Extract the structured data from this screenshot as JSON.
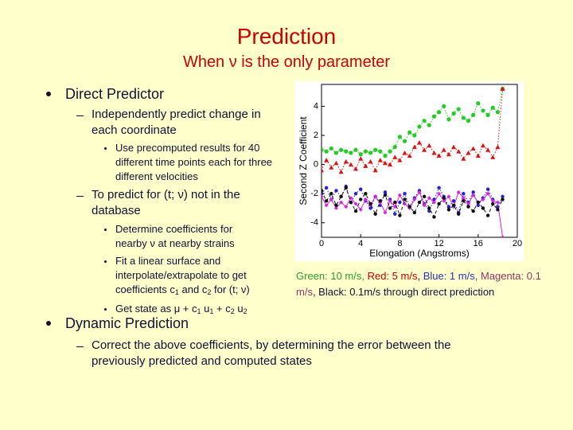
{
  "title": "Prediction",
  "subtitle": "When ν is the only parameter",
  "outline": [
    {
      "text": "Direct Predictor",
      "items": [
        {
          "text": "Independently predict change in each coordinate",
          "items": [
            {
              "parts": [
                "Use precomputed results for 40 different time points each for three different velocities"
              ]
            }
          ]
        },
        {
          "text": "To predict for (t; ν) not in the database",
          "items": [
            {
              "parts": [
                "Determine coefficients for nearby ν at nearby strains"
              ]
            },
            {
              "parts": [
                "Fit a linear surface and interpolate/extrapolate to get coefficients c",
                "1",
                " and c",
                "2",
                " for (t; ν)"
              ]
            },
            {
              "parts": [
                "Get state as μ + c",
                "1",
                " u",
                "1",
                " + c",
                "2",
                " u",
                "2"
              ]
            }
          ]
        }
      ]
    },
    {
      "text": "Dynamic Prediction",
      "items": [
        {
          "text": "Correct the above coefficients, by determining the error between the previously predicted and computed states"
        }
      ]
    }
  ],
  "caption": [
    {
      "text": "Green: 10 m/s, ",
      "color": "#2e9e2e"
    },
    {
      "text": "Red: 5 m/s",
      "color": "#cc0000"
    },
    {
      "text": ", ",
      "color": "#111133"
    },
    {
      "text": "Blue: 1 m/s, ",
      "color": "#2233bb"
    },
    {
      "text": "Magenta: 0.1 m/s",
      "color": "#993366"
    },
    {
      "text": ", Black: 0.1m/s through direct prediction",
      "color": "#111133"
    }
  ],
  "chart_data": {
    "type": "line",
    "xlabel": "Elongation (Angstroms)",
    "ylabel": "Second Z Coefficient",
    "xlim": [
      0,
      20
    ],
    "ylim": [
      -5,
      5.5
    ],
    "xticks": [
      0,
      4,
      8,
      12,
      16,
      20
    ],
    "yticks": [
      -4,
      -2,
      0,
      2,
      4
    ],
    "x": [
      0,
      0.5,
      1,
      1.5,
      2,
      2.5,
      3,
      3.5,
      4,
      4.5,
      5,
      5.5,
      6,
      6.5,
      7,
      7.5,
      8,
      8.5,
      9,
      9.5,
      10,
      10.5,
      11,
      11.5,
      12,
      12.5,
      13,
      13.5,
      14,
      14.5,
      15,
      15.5,
      16,
      16.5,
      17,
      17.5,
      18,
      18.5
    ],
    "series": [
      {
        "color": "#22cc22",
        "marker": "circle",
        "line": "dotted",
        "values": [
          1.0,
          0.9,
          1.1,
          0.8,
          1.0,
          0.9,
          0.8,
          1.0,
          0.7,
          0.9,
          0.8,
          1.0,
          0.9,
          0.6,
          0.9,
          1.2,
          1.9,
          1.6,
          2.2,
          2.0,
          2.6,
          3.0,
          2.7,
          3.3,
          3.6,
          4.0,
          3.1,
          3.5,
          3.8,
          3.2,
          3.0,
          3.4,
          4.2,
          3.7,
          3.4,
          3.9,
          3.6,
          5.2
        ]
      },
      {
        "color": "#dd1111",
        "marker": "triangle",
        "line": "dotted",
        "values": [
          -0.4,
          0.3,
          -0.2,
          0.1,
          -0.5,
          0.2,
          0.0,
          -0.3,
          0.4,
          -0.1,
          0.2,
          -0.4,
          0.3,
          0.1,
          0.0,
          0.5,
          0.3,
          0.8,
          0.6,
          1.2,
          1.5,
          1.0,
          1.3,
          0.8,
          0.6,
          1.0,
          0.7,
          1.2,
          0.9,
          0.4,
          0.8,
          1.1,
          0.6,
          1.3,
          1.0,
          0.5,
          1.2,
          5.2
        ]
      },
      {
        "color": "#2222dd",
        "marker": "dot",
        "line": "dotted",
        "values": [
          -2.0,
          -1.6,
          -2.4,
          -1.8,
          -2.2,
          -1.5,
          -2.6,
          -2.0,
          -1.7,
          -2.5,
          -3.0,
          -2.2,
          -2.8,
          -1.9,
          -2.4,
          -3.4,
          -2.6,
          -2.0,
          -2.9,
          -2.3,
          -1.8,
          -2.7,
          -3.2,
          -2.4,
          -1.6,
          -2.2,
          -2.9,
          -2.5,
          -3.3,
          -2.0,
          -2.6,
          -1.9,
          -2.8,
          -2.3,
          -1.7,
          -2.4,
          -2.9,
          -2.2
        ]
      },
      {
        "color": "#dd22dd",
        "marker": "diamond",
        "line": "solid",
        "values": [
          -2.2,
          -2.8,
          -2.4,
          -3.0,
          -2.6,
          -2.9,
          -2.3,
          -2.7,
          -3.1,
          -2.4,
          -2.8,
          -2.2,
          -2.6,
          -3.3,
          -2.5,
          -2.9,
          -2.1,
          -2.7,
          -3.0,
          -2.4,
          -1.9,
          -2.8,
          -2.3,
          -2.6,
          -2.0,
          -2.5,
          -2.2,
          -2.9,
          -1.9,
          -2.3,
          -2.7,
          -2.1,
          -2.6,
          -2.4,
          -2.0,
          -2.5,
          -2.6,
          -5.0
        ]
      },
      {
        "color": "#111111",
        "marker": "dot",
        "line": "dashed",
        "values": [
          -1.8,
          -2.5,
          -2.0,
          -2.8,
          -2.2,
          -1.6,
          -2.6,
          -3.2,
          -2.4,
          -2.0,
          -2.7,
          -3.4,
          -2.5,
          -2.1,
          -3.0,
          -2.6,
          -3.5,
          -2.4,
          -2.9,
          -3.3,
          -2.6,
          -2.2,
          -3.0,
          -3.6,
          -2.7,
          -2.3,
          -3.1,
          -2.8,
          -3.4,
          -2.5,
          -2.9,
          -3.2,
          -2.6,
          -3.0,
          -3.5,
          -2.7,
          -3.1,
          -2.4
        ]
      }
    ]
  }
}
